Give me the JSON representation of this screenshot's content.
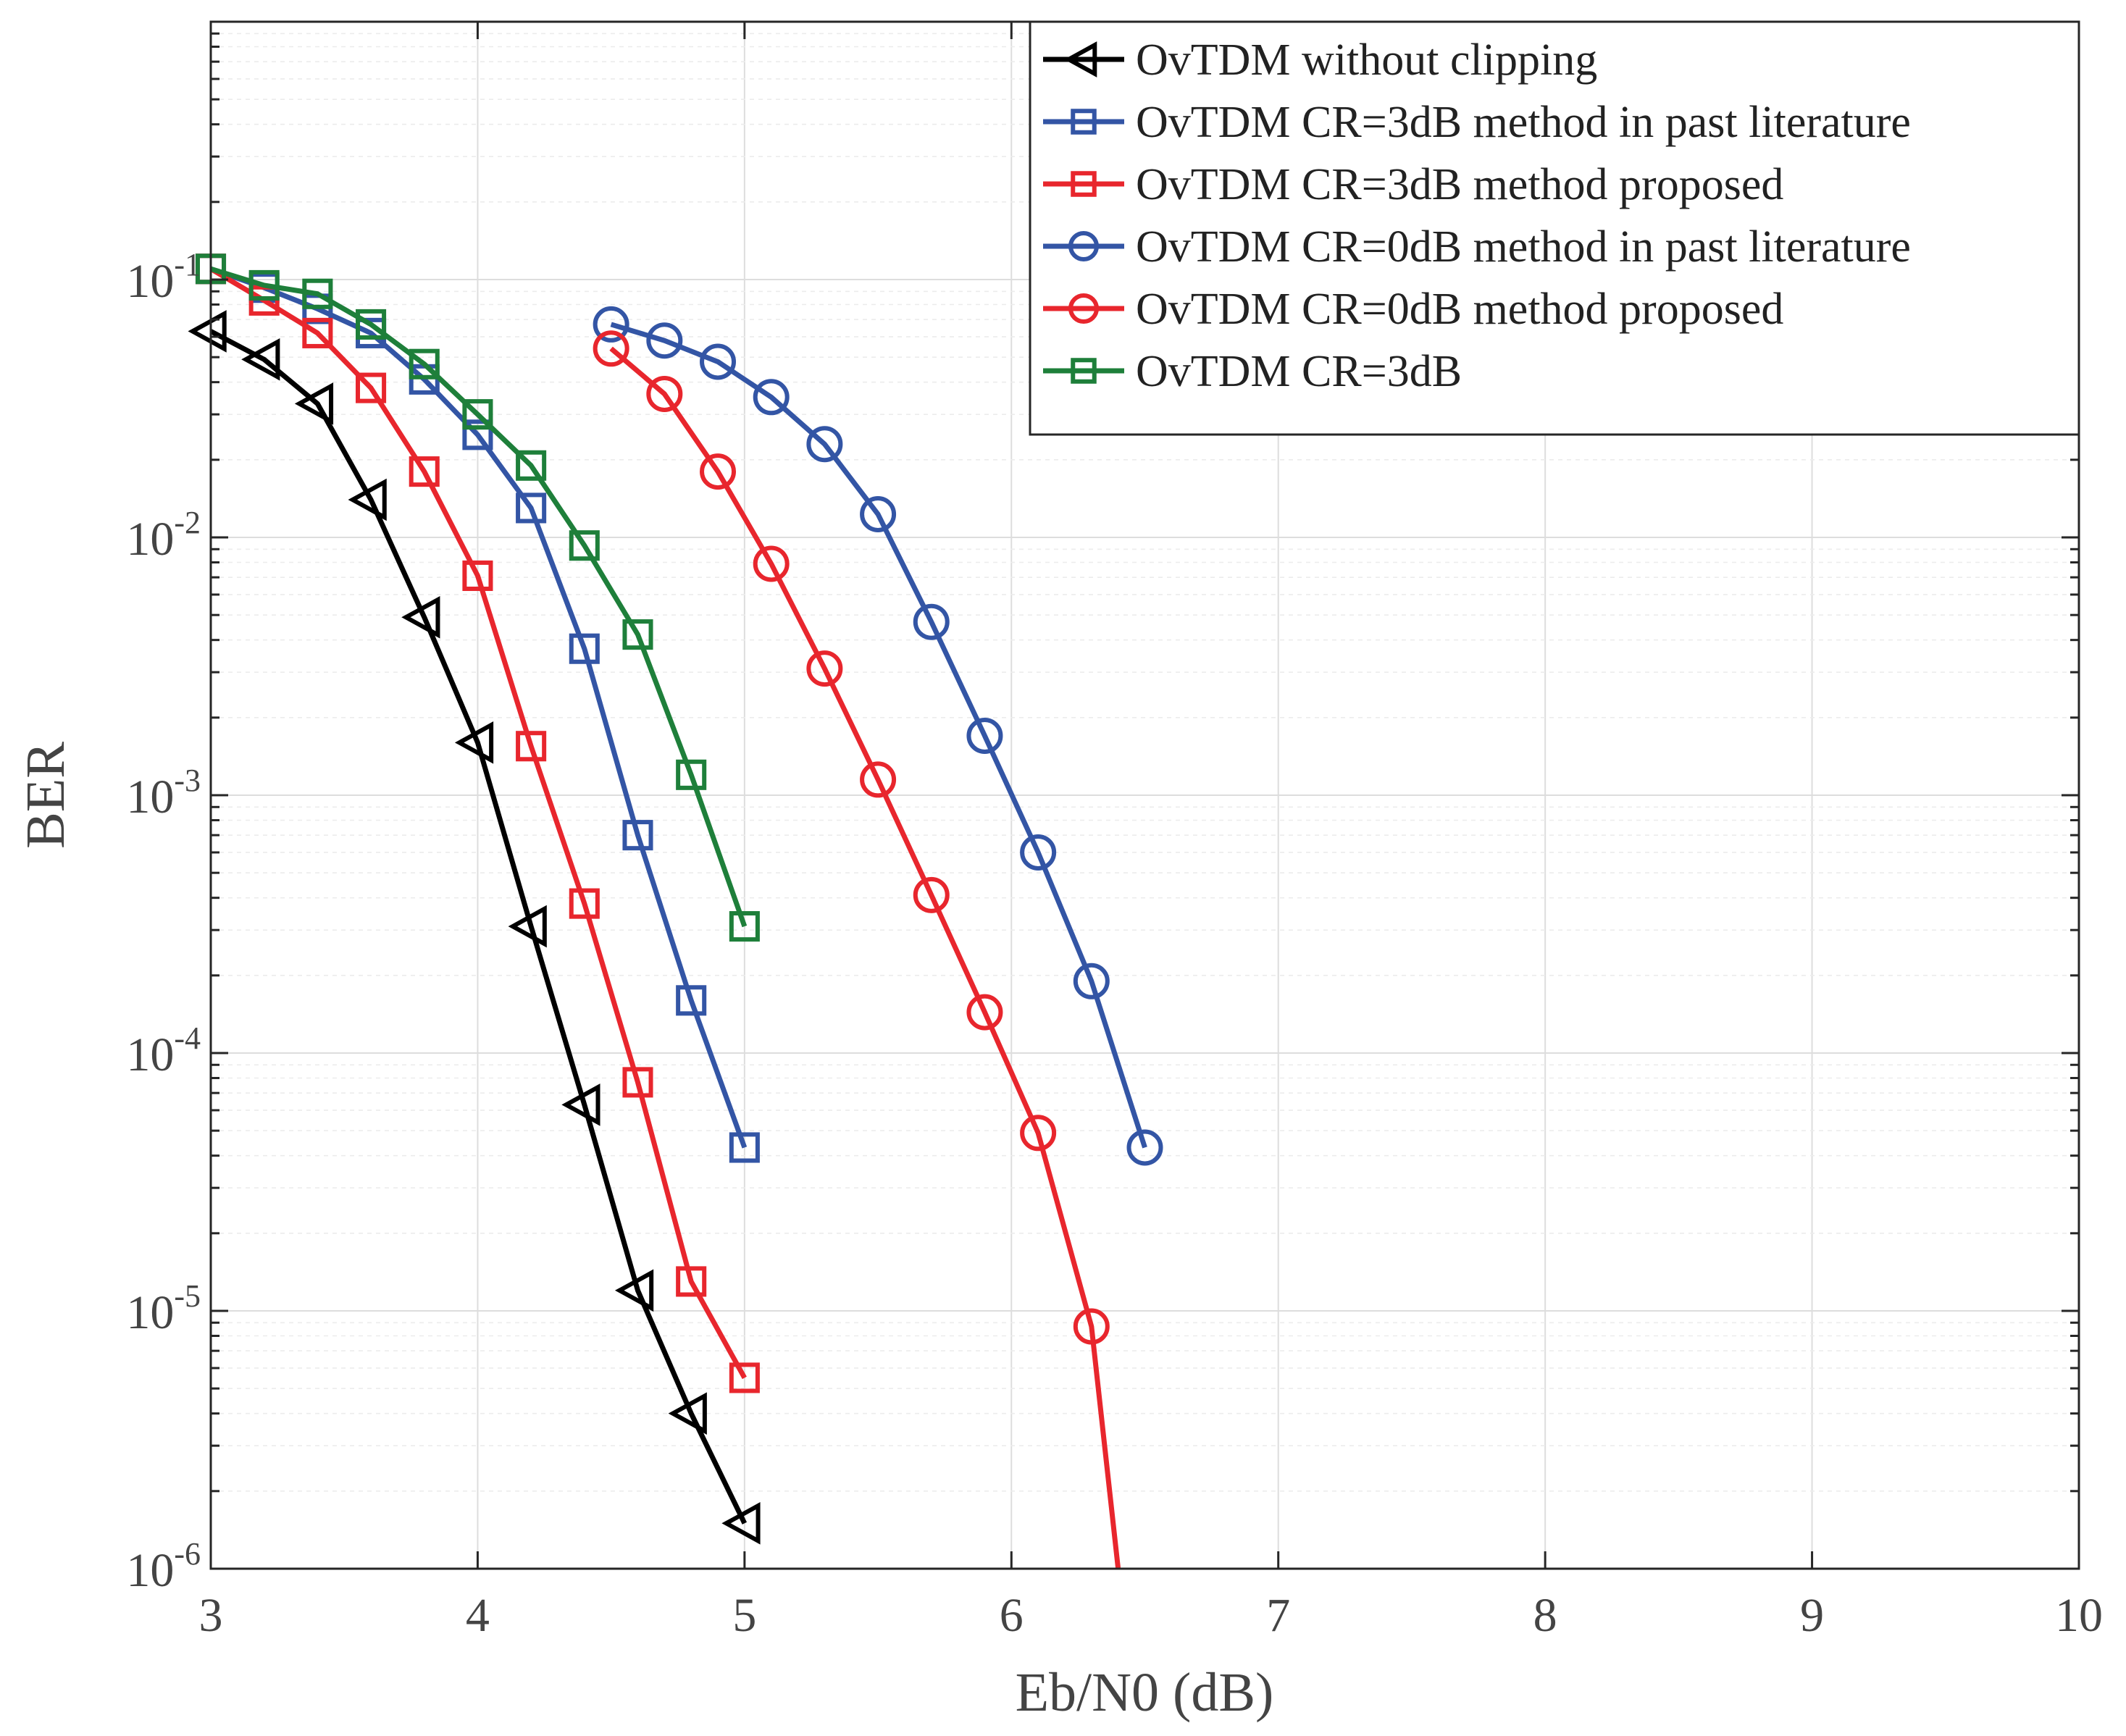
{
  "chart_data": {
    "type": "line",
    "title": "",
    "xlabel": "Eb/N0 (dB)",
    "ylabel": "BER",
    "yscale": "log",
    "xlim": [
      3,
      10
    ],
    "ylim": [
      1e-06,
      1
    ],
    "grid": true,
    "legend_position": "top-right",
    "x_ticks": [
      "3",
      "4",
      "5",
      "6",
      "7",
      "8",
      "9",
      "10"
    ],
    "y_ticks": [
      {
        "base": "10",
        "exp": "-1",
        "value": 0.1
      },
      {
        "base": "10",
        "exp": "-2",
        "value": 0.01
      },
      {
        "base": "10",
        "exp": "-3",
        "value": 0.001
      },
      {
        "base": "10",
        "exp": "-4",
        "value": 0.0001
      },
      {
        "base": "10",
        "exp": "-5",
        "value": 1e-05
      },
      {
        "base": "10",
        "exp": "-6",
        "value": 1e-06
      }
    ],
    "series": [
      {
        "name": "OvTDM without clipping",
        "color": "#000000",
        "marker": "triangle-left",
        "x": [
          3.0,
          3.2,
          3.4,
          3.6,
          3.8,
          4.0,
          4.2,
          4.4,
          4.6,
          4.8,
          5.0
        ],
        "y": [
          0.063,
          0.049,
          0.033,
          0.014,
          0.0049,
          0.0016,
          0.00031,
          6.3e-05,
          1.2e-05,
          4e-06,
          1.5e-06
        ]
      },
      {
        "name": "OvTDM CR=3dB method in past literature",
        "color": "#3355a5",
        "marker": "square",
        "x": [
          3.0,
          3.2,
          3.4,
          3.6,
          3.8,
          4.0,
          4.2,
          4.4,
          4.6,
          4.8,
          5.0
        ],
        "y": [
          0.11,
          0.093,
          0.077,
          0.062,
          0.041,
          0.025,
          0.013,
          0.0037,
          0.0007,
          0.00016,
          4.3e-05
        ]
      },
      {
        "name": "OvTDM CR=3dB method proposed",
        "color": "#e8262d",
        "marker": "square",
        "x": [
          3.0,
          3.2,
          3.4,
          3.6,
          3.8,
          4.0,
          4.2,
          4.4,
          4.6,
          4.8,
          5.0
        ],
        "y": [
          0.11,
          0.083,
          0.062,
          0.038,
          0.018,
          0.0071,
          0.00155,
          0.00038,
          7.7e-05,
          1.3e-05,
          5.5e-06
        ]
      },
      {
        "name": "OvTDM CR=0dB method in past literature",
        "color": "#3355a5",
        "marker": "circle",
        "x": [
          4.5,
          4.7,
          4.9,
          5.1,
          5.3,
          5.5,
          5.7,
          5.9,
          6.1,
          6.3,
          6.5
        ],
        "y": [
          0.067,
          0.058,
          0.048,
          0.035,
          0.023,
          0.0123,
          0.0047,
          0.0017,
          0.0006,
          0.00019,
          4.3e-05
        ]
      },
      {
        "name": "OvTDM CR=0dB method proposed",
        "color": "#e8262d",
        "marker": "circle",
        "x": [
          4.5,
          4.7,
          4.9,
          5.1,
          5.3,
          5.5,
          5.7,
          5.9,
          6.1,
          6.3,
          6.4
        ],
        "y": [
          0.054,
          0.036,
          0.018,
          0.0079,
          0.0031,
          0.00115,
          0.00041,
          0.000144,
          4.9e-05,
          8.7e-06,
          1e-06
        ],
        "marker_count": 10
      },
      {
        "name": "OvTDM CR=3dB",
        "color": "#1e7f3a",
        "marker": "square",
        "x": [
          3.0,
          3.2,
          3.4,
          3.6,
          3.8,
          4.0,
          4.2,
          4.4,
          4.6,
          4.8,
          5.0
        ],
        "y": [
          0.11,
          0.095,
          0.088,
          0.067,
          0.047,
          0.03,
          0.019,
          0.0093,
          0.0042,
          0.0012,
          0.00031
        ]
      }
    ]
  }
}
